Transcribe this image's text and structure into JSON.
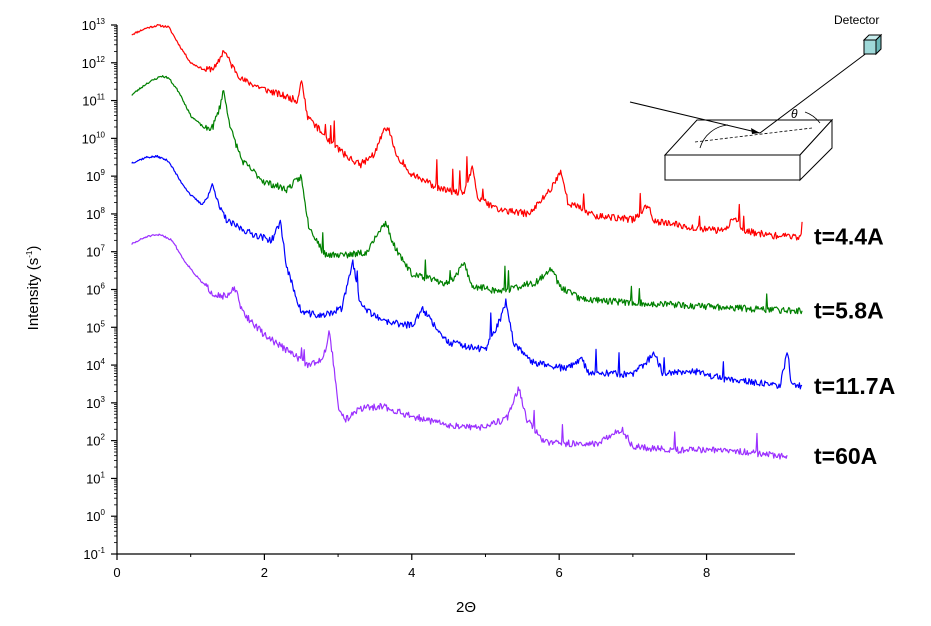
{
  "chart_data": {
    "type": "line",
    "title": "",
    "xlabel": "2Θ",
    "ylabel_main": "Intensity (s",
    "ylabel_sup": "-1",
    "ylabel_close": ")",
    "xlim": [
      0,
      9.2
    ],
    "ylim_exponent": [
      -1,
      13
    ],
    "y_scale": "log",
    "grid": false,
    "legend": "none",
    "x_ticks": [
      "0",
      "2",
      "4",
      "6",
      "8"
    ],
    "y_tick_base": "10",
    "y_tick_exponents": [
      "-1",
      "0",
      "1",
      "2",
      "3",
      "4",
      "5",
      "6",
      "7",
      "8",
      "9",
      "10",
      "11",
      "12",
      "13"
    ],
    "series": [
      {
        "name": "t=4.4A",
        "color": "#ff0000",
        "noise": 0.09,
        "seed": 11,
        "points": [
          [
            0.2,
            12.75
          ],
          [
            0.4,
            12.92
          ],
          [
            0.55,
            12.99
          ],
          [
            0.7,
            12.95
          ],
          [
            0.85,
            12.45
          ],
          [
            1.0,
            12.0
          ],
          [
            1.2,
            11.8
          ],
          [
            1.35,
            11.9
          ],
          [
            1.45,
            12.35
          ],
          [
            1.55,
            11.95
          ],
          [
            1.7,
            11.55
          ],
          [
            2.0,
            11.3
          ],
          [
            2.3,
            11.1
          ],
          [
            2.45,
            11.0
          ],
          [
            2.5,
            11.6
          ],
          [
            2.58,
            10.6
          ],
          [
            2.8,
            10.1
          ],
          [
            3.1,
            9.55
          ],
          [
            3.3,
            9.3
          ],
          [
            3.5,
            9.6
          ],
          [
            3.62,
            10.2
          ],
          [
            3.68,
            10.3
          ],
          [
            3.78,
            9.6
          ],
          [
            4.0,
            9.05
          ],
          [
            4.4,
            8.65
          ],
          [
            4.7,
            8.55
          ],
          [
            4.82,
            9.2
          ],
          [
            4.9,
            8.4
          ],
          [
            5.2,
            8.1
          ],
          [
            5.6,
            8.0
          ],
          [
            5.9,
            8.7
          ],
          [
            6.02,
            9.15
          ],
          [
            6.12,
            8.3
          ],
          [
            6.5,
            7.95
          ],
          [
            7.0,
            7.85
          ],
          [
            7.2,
            8.2
          ],
          [
            7.3,
            7.8
          ],
          [
            7.8,
            7.65
          ],
          [
            8.2,
            7.55
          ],
          [
            8.4,
            7.9
          ],
          [
            8.5,
            7.55
          ],
          [
            9.0,
            7.4
          ],
          [
            9.3,
            7.4
          ]
        ]
      },
      {
        "name": "t=5.8A",
        "color": "#008000",
        "noise": 0.09,
        "seed": 23,
        "points": [
          [
            0.2,
            11.15
          ],
          [
            0.4,
            11.45
          ],
          [
            0.6,
            11.65
          ],
          [
            0.7,
            11.6
          ],
          [
            0.85,
            11.2
          ],
          [
            1.0,
            10.6
          ],
          [
            1.2,
            10.25
          ],
          [
            1.3,
            10.3
          ],
          [
            1.4,
            10.85
          ],
          [
            1.44,
            11.3
          ],
          [
            1.55,
            10.2
          ],
          [
            1.7,
            9.4
          ],
          [
            2.0,
            8.85
          ],
          [
            2.3,
            8.65
          ],
          [
            2.45,
            8.9
          ],
          [
            2.5,
            9.0
          ],
          [
            2.6,
            7.7
          ],
          [
            2.8,
            6.95
          ],
          [
            3.1,
            6.9
          ],
          [
            3.4,
            7.0
          ],
          [
            3.55,
            7.5
          ],
          [
            3.65,
            7.8
          ],
          [
            3.75,
            7.2
          ],
          [
            4.0,
            6.4
          ],
          [
            4.5,
            6.15
          ],
          [
            4.72,
            6.7
          ],
          [
            4.8,
            6.1
          ],
          [
            5.2,
            5.95
          ],
          [
            5.7,
            6.2
          ],
          [
            5.9,
            6.6
          ],
          [
            6.0,
            6.1
          ],
          [
            6.3,
            5.75
          ],
          [
            7.0,
            5.65
          ],
          [
            7.5,
            5.6
          ],
          [
            8.0,
            5.55
          ],
          [
            8.5,
            5.5
          ],
          [
            9.0,
            5.45
          ],
          [
            9.3,
            5.45
          ]
        ]
      },
      {
        "name": "t=11.7A",
        "color": "#0000ff",
        "noise": 0.09,
        "seed": 37,
        "points": [
          [
            0.2,
            9.35
          ],
          [
            0.4,
            9.5
          ],
          [
            0.55,
            9.52
          ],
          [
            0.7,
            9.4
          ],
          [
            0.85,
            8.9
          ],
          [
            1.0,
            8.5
          ],
          [
            1.15,
            8.25
          ],
          [
            1.25,
            8.5
          ],
          [
            1.3,
            8.85
          ],
          [
            1.38,
            8.2
          ],
          [
            1.5,
            7.8
          ],
          [
            1.8,
            7.5
          ],
          [
            2.1,
            7.3
          ],
          [
            2.22,
            7.8
          ],
          [
            2.3,
            6.6
          ],
          [
            2.5,
            5.4
          ],
          [
            2.8,
            5.3
          ],
          [
            3.05,
            5.5
          ],
          [
            3.15,
            6.3
          ],
          [
            3.2,
            6.75
          ],
          [
            3.3,
            5.6
          ],
          [
            3.6,
            5.15
          ],
          [
            4.0,
            5.05
          ],
          [
            4.15,
            5.5
          ],
          [
            4.25,
            5.2
          ],
          [
            4.5,
            4.6
          ],
          [
            5.0,
            4.4
          ],
          [
            5.2,
            5.2
          ],
          [
            5.28,
            5.7
          ],
          [
            5.38,
            4.6
          ],
          [
            5.6,
            4.1
          ],
          [
            6.1,
            3.9
          ],
          [
            6.3,
            4.15
          ],
          [
            6.4,
            3.8
          ],
          [
            7.0,
            3.75
          ],
          [
            7.3,
            4.3
          ],
          [
            7.4,
            3.8
          ],
          [
            7.8,
            3.85
          ],
          [
            8.2,
            3.65
          ],
          [
            8.6,
            3.55
          ],
          [
            9.0,
            3.45
          ],
          [
            9.1,
            4.4
          ],
          [
            9.15,
            3.5
          ],
          [
            9.3,
            3.45
          ]
        ]
      },
      {
        "name": "t=60A",
        "color": "#9b30ff",
        "noise": 0.09,
        "seed": 51,
        "points": [
          [
            0.2,
            7.2
          ],
          [
            0.4,
            7.4
          ],
          [
            0.6,
            7.45
          ],
          [
            0.75,
            7.3
          ],
          [
            0.9,
            6.8
          ],
          [
            1.1,
            6.3
          ],
          [
            1.3,
            5.9
          ],
          [
            1.5,
            5.8
          ],
          [
            1.6,
            6.05
          ],
          [
            1.7,
            5.4
          ],
          [
            2.0,
            4.8
          ],
          [
            2.3,
            4.4
          ],
          [
            2.6,
            4.0
          ],
          [
            2.8,
            4.2
          ],
          [
            2.88,
            4.85
          ],
          [
            2.93,
            4.2
          ],
          [
            3.0,
            2.9
          ],
          [
            3.1,
            2.55
          ],
          [
            3.3,
            2.85
          ],
          [
            3.6,
            2.9
          ],
          [
            4.0,
            2.65
          ],
          [
            4.5,
            2.4
          ],
          [
            5.0,
            2.35
          ],
          [
            5.3,
            2.6
          ],
          [
            5.45,
            3.4
          ],
          [
            5.55,
            2.6
          ],
          [
            5.8,
            1.95
          ],
          [
            6.5,
            1.9
          ],
          [
            6.85,
            2.3
          ],
          [
            7.0,
            1.85
          ],
          [
            7.5,
            1.75
          ],
          [
            8.0,
            1.75
          ],
          [
            8.5,
            1.7
          ],
          [
            9.0,
            1.6
          ],
          [
            9.1,
            1.6
          ]
        ]
      }
    ]
  },
  "inset": {
    "detector_label": "Detector",
    "angle_label": "θ"
  }
}
